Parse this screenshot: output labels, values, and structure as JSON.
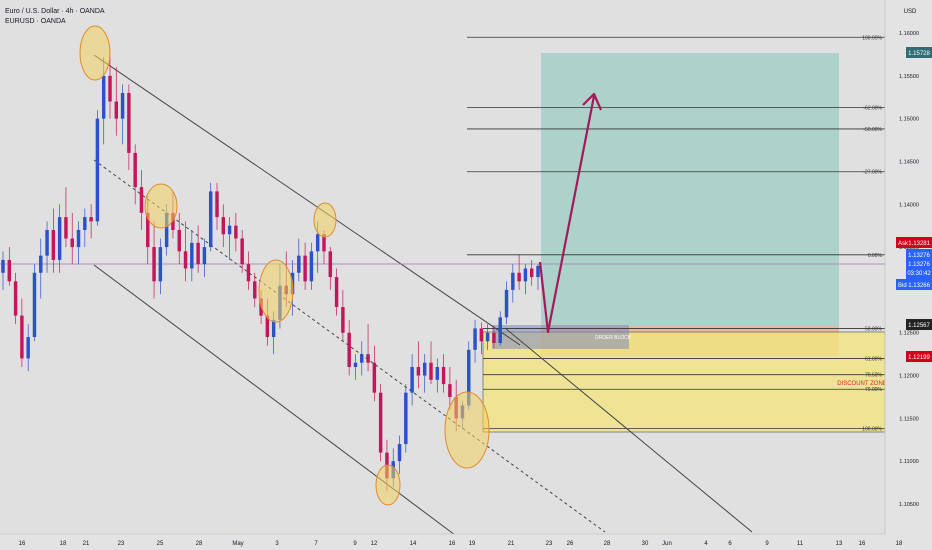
{
  "header": {
    "title": "Euro / U.S. Dollar · 4h · OANDA",
    "symbol": "EURUSD · OANDA"
  },
  "colors": {
    "background": "#e0e0e0",
    "bull": "#2b52c8",
    "bear": "#c2185b",
    "channel": "#444444",
    "target_zone": "#9ccdc2",
    "discount_zone": "#f2e680",
    "order_block": "#e8aa86",
    "arrow": "#a3195b",
    "price_line": "#a07db0",
    "ask_box": "#d0021b",
    "price_box": "#2962ff",
    "target_box": "#2f6d75",
    "level_box": "#222222",
    "annotation": "#d82b2b"
  },
  "price_scale": {
    "currency": "USD",
    "target_price": "1.15728",
    "ask_label": "Ask",
    "ask_price": "1.13281",
    "last_price": "1.13276",
    "last_price_2": "1.13276",
    "countdown": "03:30:42",
    "bid_label": "Bid",
    "bid_price": "1.13266",
    "level_price": "1.12567",
    "discount_price": "1.12199"
  },
  "annotations": {
    "order_block": "ORDER BLOCK",
    "discount_zone": "DISCOUNT ZONE"
  },
  "chart_data": {
    "type": "candlestick",
    "instrument": "EURUSD",
    "timeframe": "4h",
    "y_ticks": [
      "1.16000",
      "1.15500",
      "1.15000",
      "1.14500",
      "1.14000",
      "1.13500",
      "1.12500",
      "1.12000",
      "1.11500",
      "1.11000",
      "1.10500"
    ],
    "x_ticks": [
      "16",
      "18",
      "21",
      "23",
      "25",
      "28",
      "May",
      "3",
      "7",
      "9",
      "12",
      "14",
      "16",
      "19",
      "21",
      "23",
      "26",
      "28",
      "30",
      "Jun",
      "4",
      "6",
      "9",
      "11",
      "13",
      "16",
      "18"
    ],
    "fib_levels": [
      {
        "label": "100.00%",
        "price": 1.1595
      },
      {
        "label": "-62.00%",
        "price": 1.1513
      },
      {
        "label": "-50.00%",
        "price": 1.1488
      },
      {
        "label": "-27.00%",
        "price": 1.1438
      },
      {
        "label": "0.00%",
        "price": 1.1341
      },
      {
        "label": "50.00%",
        "price": 1.1255
      },
      {
        "label": "61.80%",
        "price": 1.122
      },
      {
        "label": "70.50%",
        "price": 1.1201
      },
      {
        "label": "79.00%",
        "price": 1.1184
      },
      {
        "label": "100.00%",
        "price": 1.1138
      }
    ],
    "candles": [
      {
        "time": "Apr 16",
        "o": 1.132,
        "h": 1.1345,
        "l": 1.13,
        "c": 1.1335
      },
      {
        "time": "",
        "o": 1.1335,
        "h": 1.135,
        "l": 1.1305,
        "c": 1.131
      },
      {
        "time": "",
        "o": 1.131,
        "h": 1.132,
        "l": 1.126,
        "c": 1.127
      },
      {
        "time": "",
        "o": 1.127,
        "h": 1.129,
        "l": 1.121,
        "c": 1.122
      },
      {
        "time": "",
        "o": 1.122,
        "h": 1.126,
        "l": 1.1205,
        "c": 1.1245
      },
      {
        "time": "",
        "o": 1.1245,
        "h": 1.133,
        "l": 1.124,
        "c": 1.132
      },
      {
        "time": "",
        "o": 1.132,
        "h": 1.136,
        "l": 1.129,
        "c": 1.134
      },
      {
        "time": "",
        "o": 1.134,
        "h": 1.138,
        "l": 1.132,
        "c": 1.137
      },
      {
        "time": "Apr 18",
        "o": 1.137,
        "h": 1.1395,
        "l": 1.132,
        "c": 1.1335
      },
      {
        "time": "",
        "o": 1.1335,
        "h": 1.14,
        "l": 1.132,
        "c": 1.1385
      },
      {
        "time": "",
        "o": 1.1385,
        "h": 1.142,
        "l": 1.135,
        "c": 1.136
      },
      {
        "time": "",
        "o": 1.136,
        "h": 1.139,
        "l": 1.133,
        "c": 1.135
      },
      {
        "time": "",
        "o": 1.135,
        "h": 1.138,
        "l": 1.133,
        "c": 1.137
      },
      {
        "time": "",
        "o": 1.137,
        "h": 1.1395,
        "l": 1.135,
        "c": 1.1385
      },
      {
        "time": "",
        "o": 1.1385,
        "h": 1.14,
        "l": 1.136,
        "c": 1.138
      },
      {
        "time": "Apr 21",
        "o": 1.138,
        "h": 1.151,
        "l": 1.1375,
        "c": 1.15
      },
      {
        "time": "",
        "o": 1.15,
        "h": 1.1572,
        "l": 1.147,
        "c": 1.155
      },
      {
        "time": "",
        "o": 1.155,
        "h": 1.1573,
        "l": 1.15,
        "c": 1.152
      },
      {
        "time": "",
        "o": 1.152,
        "h": 1.156,
        "l": 1.148,
        "c": 1.15
      },
      {
        "time": "",
        "o": 1.15,
        "h": 1.154,
        "l": 1.147,
        "c": 1.153
      },
      {
        "time": "",
        "o": 1.153,
        "h": 1.154,
        "l": 1.144,
        "c": 1.146
      },
      {
        "time": "Apr 23",
        "o": 1.146,
        "h": 1.147,
        "l": 1.14,
        "c": 1.142
      },
      {
        "time": "",
        "o": 1.142,
        "h": 1.144,
        "l": 1.137,
        "c": 1.139
      },
      {
        "time": "",
        "o": 1.139,
        "h": 1.141,
        "l": 1.133,
        "c": 1.135
      },
      {
        "time": "",
        "o": 1.135,
        "h": 1.138,
        "l": 1.129,
        "c": 1.131
      },
      {
        "time": "",
        "o": 1.131,
        "h": 1.136,
        "l": 1.1295,
        "c": 1.135
      },
      {
        "time": "",
        "o": 1.135,
        "h": 1.14,
        "l": 1.134,
        "c": 1.139
      },
      {
        "time": "Apr 25",
        "o": 1.139,
        "h": 1.1415,
        "l": 1.136,
        "c": 1.137
      },
      {
        "time": "",
        "o": 1.137,
        "h": 1.139,
        "l": 1.133,
        "c": 1.1345
      },
      {
        "time": "",
        "o": 1.1345,
        "h": 1.138,
        "l": 1.131,
        "c": 1.1325
      },
      {
        "time": "",
        "o": 1.1325,
        "h": 1.137,
        "l": 1.131,
        "c": 1.1355
      },
      {
        "time": "",
        "o": 1.1355,
        "h": 1.1375,
        "l": 1.132,
        "c": 1.133
      },
      {
        "time": "",
        "o": 1.133,
        "h": 1.136,
        "l": 1.1315,
        "c": 1.135
      },
      {
        "time": "Apr 28",
        "o": 1.135,
        "h": 1.1425,
        "l": 1.1345,
        "c": 1.1415
      },
      {
        "time": "",
        "o": 1.1415,
        "h": 1.1425,
        "l": 1.137,
        "c": 1.1385
      },
      {
        "time": "",
        "o": 1.1385,
        "h": 1.14,
        "l": 1.135,
        "c": 1.1365
      },
      {
        "time": "",
        "o": 1.1365,
        "h": 1.1385,
        "l": 1.1335,
        "c": 1.1375
      },
      {
        "time": "",
        "o": 1.1375,
        "h": 1.139,
        "l": 1.1345,
        "c": 1.136
      },
      {
        "time": "",
        "o": 1.136,
        "h": 1.137,
        "l": 1.132,
        "c": 1.133
      },
      {
        "time": "May",
        "o": 1.133,
        "h": 1.1345,
        "l": 1.13,
        "c": 1.131
      },
      {
        "time": "",
        "o": 1.131,
        "h": 1.132,
        "l": 1.128,
        "c": 1.129
      },
      {
        "time": "",
        "o": 1.129,
        "h": 1.13,
        "l": 1.126,
        "c": 1.127
      },
      {
        "time": "",
        "o": 1.127,
        "h": 1.129,
        "l": 1.1235,
        "c": 1.1245
      },
      {
        "time": "",
        "o": 1.1245,
        "h": 1.1275,
        "l": 1.1225,
        "c": 1.1265
      },
      {
        "time": "May 3",
        "o": 1.1265,
        "h": 1.133,
        "l": 1.1255,
        "c": 1.1305
      },
      {
        "time": "",
        "o": 1.1305,
        "h": 1.1345,
        "l": 1.128,
        "c": 1.1295
      },
      {
        "time": "",
        "o": 1.1295,
        "h": 1.1335,
        "l": 1.127,
        "c": 1.132
      },
      {
        "time": "",
        "o": 1.132,
        "h": 1.136,
        "l": 1.131,
        "c": 1.134
      },
      {
        "time": "",
        "o": 1.134,
        "h": 1.1355,
        "l": 1.13,
        "c": 1.131
      },
      {
        "time": "May 7",
        "o": 1.131,
        "h": 1.1355,
        "l": 1.13,
        "c": 1.1345
      },
      {
        "time": "",
        "o": 1.1345,
        "h": 1.138,
        "l": 1.132,
        "c": 1.1365
      },
      {
        "time": "",
        "o": 1.1365,
        "h": 1.137,
        "l": 1.133,
        "c": 1.1345
      },
      {
        "time": "",
        "o": 1.1345,
        "h": 1.135,
        "l": 1.13,
        "c": 1.1315
      },
      {
        "time": "",
        "o": 1.1315,
        "h": 1.1325,
        "l": 1.127,
        "c": 1.128
      },
      {
        "time": "",
        "o": 1.128,
        "h": 1.13,
        "l": 1.124,
        "c": 1.125
      },
      {
        "time": "May 9",
        "o": 1.125,
        "h": 1.1265,
        "l": 1.12,
        "c": 1.121
      },
      {
        "time": "",
        "o": 1.121,
        "h": 1.1225,
        "l": 1.1195,
        "c": 1.1215
      },
      {
        "time": "",
        "o": 1.1215,
        "h": 1.124,
        "l": 1.12,
        "c": 1.1225
      },
      {
        "time": "",
        "o": 1.1225,
        "h": 1.126,
        "l": 1.1205,
        "c": 1.1215
      },
      {
        "time": "",
        "o": 1.1215,
        "h": 1.1235,
        "l": 1.117,
        "c": 1.118
      },
      {
        "time": "May 12",
        "o": 1.118,
        "h": 1.119,
        "l": 1.11,
        "c": 1.111
      },
      {
        "time": "",
        "o": 1.111,
        "h": 1.1125,
        "l": 1.1065,
        "c": 1.108
      },
      {
        "time": "",
        "o": 1.108,
        "h": 1.1115,
        "l": 1.107,
        "c": 1.11
      },
      {
        "time": "",
        "o": 1.11,
        "h": 1.113,
        "l": 1.1085,
        "c": 1.112
      },
      {
        "time": "",
        "o": 1.112,
        "h": 1.119,
        "l": 1.111,
        "c": 1.118
      },
      {
        "time": "May 14",
        "o": 1.118,
        "h": 1.1225,
        "l": 1.1165,
        "c": 1.121
      },
      {
        "time": "",
        "o": 1.121,
        "h": 1.124,
        "l": 1.1185,
        "c": 1.12
      },
      {
        "time": "",
        "o": 1.12,
        "h": 1.1225,
        "l": 1.118,
        "c": 1.1215
      },
      {
        "time": "",
        "o": 1.1215,
        "h": 1.124,
        "l": 1.119,
        "c": 1.1195
      },
      {
        "time": "",
        "o": 1.1195,
        "h": 1.122,
        "l": 1.118,
        "c": 1.121
      },
      {
        "time": "May 16",
        "o": 1.121,
        "h": 1.1225,
        "l": 1.118,
        "c": 1.119
      },
      {
        "time": "",
        "o": 1.119,
        "h": 1.121,
        "l": 1.116,
        "c": 1.1175
      },
      {
        "time": "",
        "o": 1.1175,
        "h": 1.1195,
        "l": 1.1135,
        "c": 1.115
      },
      {
        "time": "",
        "o": 1.115,
        "h": 1.117,
        "l": 1.1138,
        "c": 1.1165
      },
      {
        "time": "May 19",
        "o": 1.1165,
        "h": 1.124,
        "l": 1.116,
        "c": 1.123
      },
      {
        "time": "",
        "o": 1.123,
        "h": 1.1265,
        "l": 1.1215,
        "c": 1.1255
      },
      {
        "time": "",
        "o": 1.1255,
        "h": 1.1262,
        "l": 1.1225,
        "c": 1.124
      },
      {
        "time": "",
        "o": 1.124,
        "h": 1.126,
        "l": 1.123,
        "c": 1.125
      },
      {
        "time": "",
        "o": 1.125,
        "h": 1.1258,
        "l": 1.1232,
        "c": 1.1238
      },
      {
        "time": "May 21",
        "o": 1.1238,
        "h": 1.1275,
        "l": 1.1235,
        "c": 1.1268
      },
      {
        "time": "",
        "o": 1.1268,
        "h": 1.131,
        "l": 1.126,
        "c": 1.13
      },
      {
        "time": "",
        "o": 1.13,
        "h": 1.133,
        "l": 1.1285,
        "c": 1.132
      },
      {
        "time": "",
        "o": 1.132,
        "h": 1.1342,
        "l": 1.13,
        "c": 1.131
      },
      {
        "time": "",
        "o": 1.131,
        "h": 1.133,
        "l": 1.1295,
        "c": 1.1325
      },
      {
        "time": "",
        "o": 1.1325,
        "h": 1.1335,
        "l": 1.1305,
        "c": 1.1315
      },
      {
        "time": "",
        "o": 1.1315,
        "h": 1.133,
        "l": 1.13,
        "c": 1.1328
      }
    ],
    "legend_position": "top-left",
    "grid": false
  }
}
